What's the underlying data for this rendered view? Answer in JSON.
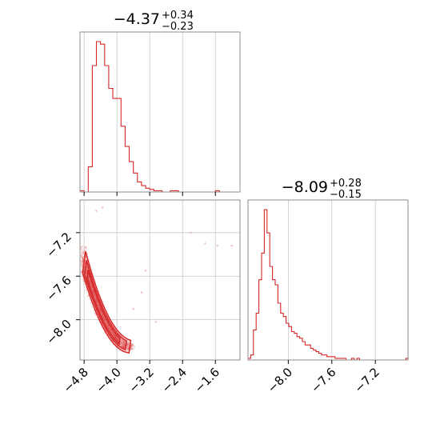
{
  "chart_data": {
    "type": "corner",
    "parameters": [
      {
        "title_value": "−4.37",
        "title_plus": "+0.34",
        "title_minus": "−0.23",
        "range": [
          -4.9,
          -1.0
        ],
        "ticks": [
          -4.8,
          -4.0,
          -3.2,
          -2.4,
          -1.6
        ],
        "tick_labels": [
          "−4.8",
          "−4.0",
          "−3.2",
          "−2.4",
          "−1.6"
        ]
      },
      {
        "title_value": "−8.09",
        "title_plus": "+0.28",
        "title_minus": "−0.15",
        "range": [
          -8.37,
          -6.9
        ],
        "ticks": [
          -8.0,
          -7.6,
          -7.2
        ],
        "tick_labels": [
          "−8.0",
          "−7.6",
          "−7.2"
        ]
      }
    ],
    "hist1": {
      "bin_width": 0.1,
      "edges_start": -4.9,
      "counts": [
        1,
        0,
        20,
        100,
        119,
        117,
        100,
        82,
        74,
        74,
        52,
        36,
        24,
        15,
        8,
        5,
        3,
        2,
        1,
        1,
        0,
        0,
        1,
        1,
        0,
        0,
        0,
        0,
        0,
        0,
        0,
        0,
        0,
        1,
        0,
        0,
        0,
        0,
        0
      ]
    },
    "hist2": {
      "bin_width": 0.025,
      "edges_start": -8.37,
      "counts": [
        1,
        3,
        18,
        28,
        48,
        64,
        90,
        76,
        56,
        48,
        45,
        34,
        28,
        26,
        22,
        20,
        17,
        16,
        14,
        13,
        11,
        9,
        9,
        7,
        6,
        5,
        4,
        3,
        3,
        2,
        2,
        2,
        1,
        1,
        1,
        1,
        0,
        0,
        1,
        0,
        1,
        0,
        0,
        0,
        0,
        0,
        0,
        0,
        0,
        0,
        0,
        0,
        0,
        0,
        0,
        0,
        0,
        0,
        1
      ]
    },
    "scatter_color": "#d62728",
    "contour_color": "#d62728",
    "grid": true
  }
}
